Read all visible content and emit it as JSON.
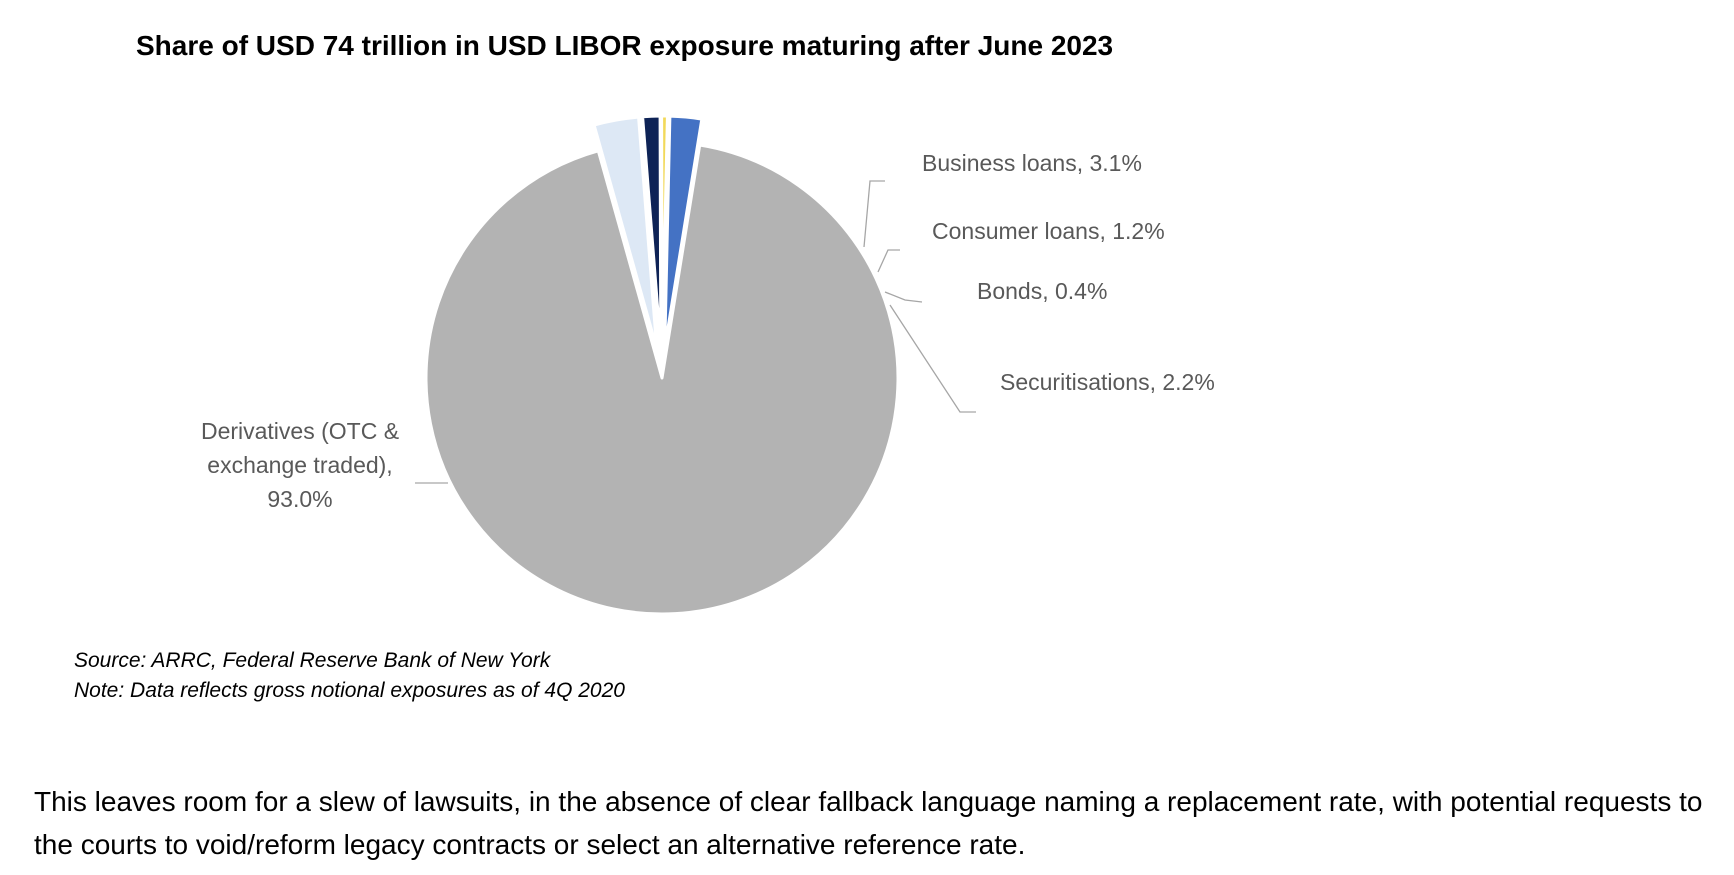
{
  "chart_data": {
    "type": "pie",
    "title": "Share of USD 74 trillion in USD LIBOR exposure maturing after June 2023",
    "slices": [
      {
        "name": "Derivatives (OTC & exchange traded)",
        "value": 93.0,
        "label_lines": [
          "Derivatives (OTC &",
          "exchange traded),",
          "93.0%"
        ],
        "color": "#b3b3b3",
        "explode": false
      },
      {
        "name": "Business loans",
        "value": 3.1,
        "label_lines": [
          "Business loans, 3.1%"
        ],
        "color": "#dde8f5",
        "explode": true
      },
      {
        "name": "Consumer loans",
        "value": 1.2,
        "label_lines": [
          "Consumer loans, 1.2%"
        ],
        "color": "#0e2356",
        "explode": true
      },
      {
        "name": "Bonds",
        "value": 0.4,
        "label_lines": [
          "Bonds, 0.4%"
        ],
        "color": "#f2d95a",
        "explode": true
      },
      {
        "name": "Securitisations",
        "value": 2.2,
        "label_lines": [
          "Securitisations, 2.2%"
        ],
        "color": "#4472c4",
        "explode": true
      }
    ],
    "legend": "none"
  },
  "notes": {
    "source": "Source: ARRC, Federal Reserve Bank of New York",
    "note": "Note: Data reflects gross notional exposures as of 4Q 2020"
  },
  "body_text": "This leaves room for a slew of lawsuits, in the absence of clear fallback language naming a replacement rate, with potential requests to the courts to void/reform legacy contracts or select an alternative reference rate."
}
